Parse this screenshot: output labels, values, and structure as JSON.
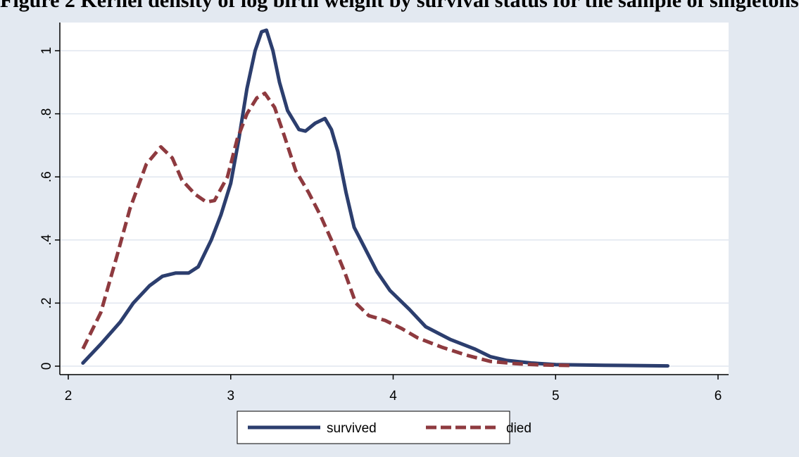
{
  "title": "Figure 2 Kernel density of log birth weight by survival status for the sample of singletons",
  "chart_data": {
    "type": "line",
    "xlim": [
      2,
      6
    ],
    "ylim": [
      0,
      1.1
    ],
    "x_ticks": [
      2,
      3,
      4,
      5,
      6
    ],
    "x_tick_labels": [
      "2",
      "3",
      "4",
      "5",
      "6"
    ],
    "y_ticks": [
      0,
      0.2,
      0.4,
      0.6,
      0.8,
      1
    ],
    "y_tick_labels": [
      "0",
      ".2",
      ".4",
      ".6",
      ".8",
      "1"
    ],
    "grid": true,
    "legend_position": "bottom",
    "series": [
      {
        "name": "survived",
        "color": "#2c3e6e",
        "style": "solid",
        "points": [
          [
            2.09,
            0.01
          ],
          [
            2.2,
            0.07
          ],
          [
            2.32,
            0.14
          ],
          [
            2.4,
            0.2
          ],
          [
            2.5,
            0.255
          ],
          [
            2.58,
            0.285
          ],
          [
            2.66,
            0.295
          ],
          [
            2.74,
            0.295
          ],
          [
            2.8,
            0.315
          ],
          [
            2.88,
            0.4
          ],
          [
            2.94,
            0.48
          ],
          [
            3.0,
            0.58
          ],
          [
            3.05,
            0.72
          ],
          [
            3.1,
            0.88
          ],
          [
            3.15,
            1.0
          ],
          [
            3.19,
            1.06
          ],
          [
            3.22,
            1.065
          ],
          [
            3.26,
            1.0
          ],
          [
            3.3,
            0.9
          ],
          [
            3.35,
            0.81
          ],
          [
            3.42,
            0.75
          ],
          [
            3.46,
            0.745
          ],
          [
            3.52,
            0.77
          ],
          [
            3.58,
            0.785
          ],
          [
            3.62,
            0.75
          ],
          [
            3.66,
            0.68
          ],
          [
            3.71,
            0.55
          ],
          [
            3.76,
            0.44
          ],
          [
            3.82,
            0.38
          ],
          [
            3.9,
            0.3
          ],
          [
            3.98,
            0.24
          ],
          [
            4.1,
            0.18
          ],
          [
            4.2,
            0.125
          ],
          [
            4.35,
            0.085
          ],
          [
            4.5,
            0.055
          ],
          [
            4.6,
            0.03
          ],
          [
            4.7,
            0.018
          ],
          [
            4.85,
            0.01
          ],
          [
            5.0,
            0.005
          ],
          [
            5.3,
            0.003
          ],
          [
            5.69,
            0.001
          ]
        ]
      },
      {
        "name": "died",
        "color": "#8e3a3f",
        "style": "dashed",
        "points": [
          [
            2.09,
            0.055
          ],
          [
            2.2,
            0.17
          ],
          [
            2.3,
            0.35
          ],
          [
            2.38,
            0.5
          ],
          [
            2.48,
            0.64
          ],
          [
            2.57,
            0.695
          ],
          [
            2.64,
            0.66
          ],
          [
            2.7,
            0.59
          ],
          [
            2.78,
            0.545
          ],
          [
            2.85,
            0.52
          ],
          [
            2.9,
            0.525
          ],
          [
            2.98,
            0.6
          ],
          [
            3.04,
            0.72
          ],
          [
            3.1,
            0.8
          ],
          [
            3.16,
            0.85
          ],
          [
            3.21,
            0.865
          ],
          [
            3.27,
            0.82
          ],
          [
            3.33,
            0.73
          ],
          [
            3.4,
            0.62
          ],
          [
            3.48,
            0.55
          ],
          [
            3.55,
            0.48
          ],
          [
            3.62,
            0.4
          ],
          [
            3.7,
            0.3
          ],
          [
            3.77,
            0.2
          ],
          [
            3.85,
            0.16
          ],
          [
            3.95,
            0.145
          ],
          [
            4.05,
            0.12
          ],
          [
            4.15,
            0.09
          ],
          [
            4.3,
            0.06
          ],
          [
            4.45,
            0.035
          ],
          [
            4.6,
            0.015
          ],
          [
            4.75,
            0.008
          ],
          [
            4.9,
            0.004
          ],
          [
            5.1,
            0.002
          ]
        ]
      }
    ]
  }
}
